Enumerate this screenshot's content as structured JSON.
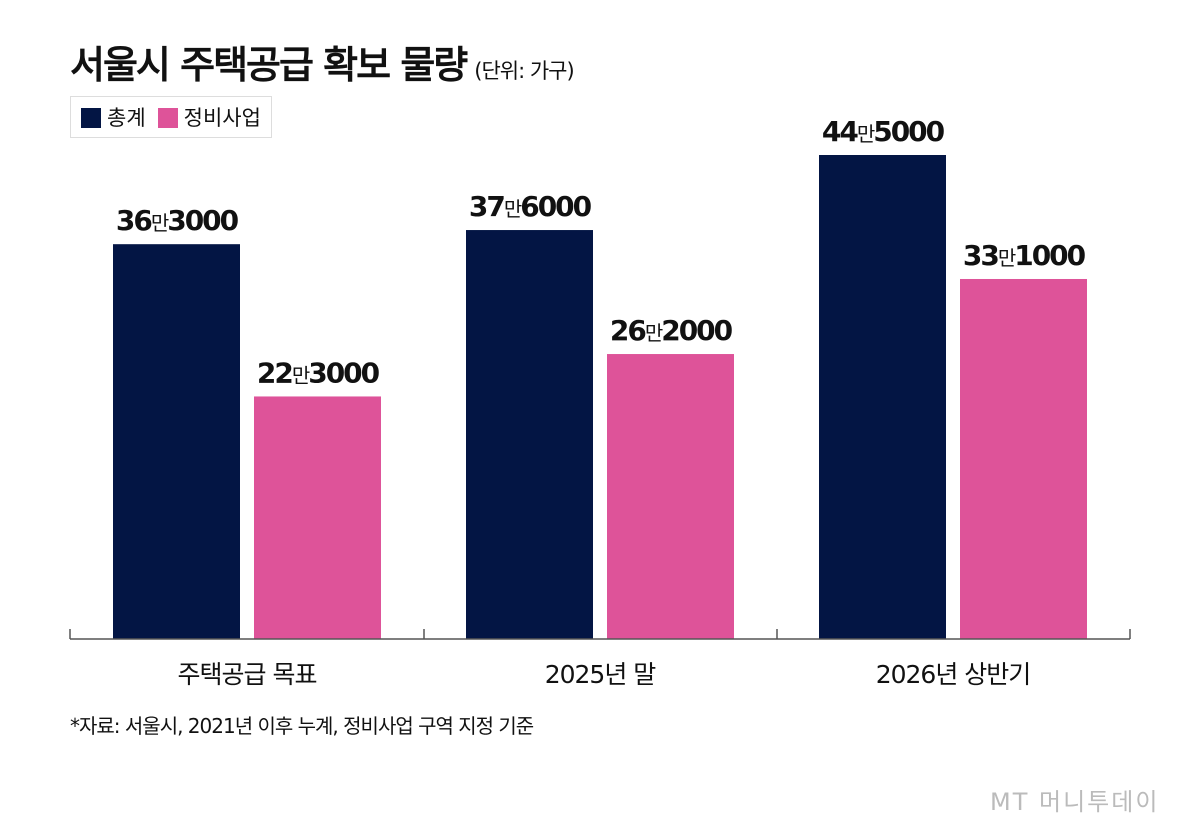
{
  "chart_data": {
    "type": "bar",
    "title": "서울시 주택공급 확보 물량",
    "unit": "(단위: 가구)",
    "categories": [
      "주택공급 목표",
      "2025년 말",
      "2026년 상반기"
    ],
    "series": [
      {
        "name": "총계",
        "color": "#031544",
        "values": [
          363000,
          376000,
          445000
        ],
        "labels": [
          "36만3000",
          "37만6000",
          "44만5000"
        ]
      },
      {
        "name": "정비사업",
        "color": "#DE5399",
        "values": [
          223000,
          262000,
          331000
        ],
        "labels": [
          "22만3000",
          "26만2000",
          "33만1000"
        ]
      }
    ],
    "ylim": [
      0,
      445000
    ],
    "grid": false,
    "legend": "top-left"
  },
  "source": "*자료: 서울시, 2021년 이후 누계, 정비사업 구역 지정 기준",
  "logo": "MT 머니투데이"
}
